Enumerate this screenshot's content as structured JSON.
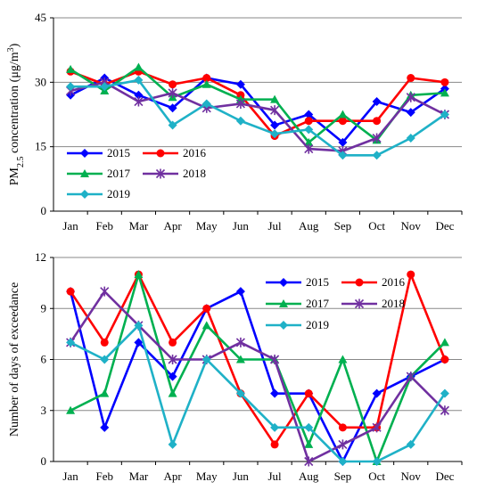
{
  "chart_data": [
    {
      "type": "line",
      "ylabel_main": "PM",
      "ylabel_sub": "2.5",
      "ylabel_rest": " concentration (μg/m",
      "ylabel_sup": "3",
      "ylabel_end": ")",
      "ylim": [
        0,
        45
      ],
      "yticks": [
        "0",
        "15",
        "30",
        "45"
      ],
      "grid": "horizontal",
      "categories": [
        "Jan",
        "Feb",
        "Mar",
        "Apr",
        "May",
        "Jun",
        "Jul",
        "Aug",
        "Sep",
        "Oct",
        "Nov",
        "Dec"
      ],
      "series": [
        {
          "name": "2015",
          "color": "#0000ff",
          "marker": "diamond",
          "values": [
            27,
            31,
            27,
            24,
            31,
            29.5,
            20,
            22.5,
            16,
            25.5,
            23,
            28.5
          ]
        },
        {
          "name": "2016",
          "color": "#ff0000",
          "marker": "circle",
          "values": [
            32.5,
            29.5,
            32.5,
            29.5,
            31,
            27,
            17.5,
            21,
            21,
            21,
            31,
            30
          ]
        },
        {
          "name": "2017",
          "color": "#00b050",
          "marker": "triangle",
          "values": [
            33,
            28,
            33.5,
            26.5,
            29.5,
            26,
            26,
            16,
            22.5,
            16.5,
            27,
            27.5
          ]
        },
        {
          "name": "2018",
          "color": "#7030a0",
          "marker": "star",
          "values": [
            28,
            30,
            25.5,
            27.5,
            24,
            25,
            23.5,
            14.5,
            14,
            17,
            26.5,
            22.5
          ]
        },
        {
          "name": "2019",
          "color": "#1fb1c7",
          "marker": "diamond",
          "values": [
            29,
            29,
            30.5,
            20,
            25,
            21,
            18,
            19,
            13,
            13,
            17,
            22.5
          ]
        }
      ]
    },
    {
      "type": "line",
      "ylabel": "Number of days of exceedance",
      "ylim": [
        0,
        12
      ],
      "yticks": [
        "0",
        "3",
        "6",
        "9",
        "12"
      ],
      "grid": "horizontal",
      "categories": [
        "Jan",
        "Feb",
        "Mar",
        "Apr",
        "May",
        "Jun",
        "Jul",
        "Aug",
        "Sep",
        "Oct",
        "Nov",
        "Dec"
      ],
      "series": [
        {
          "name": "2015",
          "color": "#0000ff",
          "marker": "diamond",
          "values": [
            10,
            2,
            7,
            5,
            9,
            10,
            4,
            4,
            0,
            4,
            5,
            6
          ]
        },
        {
          "name": "2016",
          "color": "#ff0000",
          "marker": "circle",
          "values": [
            10,
            7,
            11,
            7,
            9,
            4,
            1,
            4,
            2,
            2,
            11,
            6
          ]
        },
        {
          "name": "2017",
          "color": "#00b050",
          "marker": "triangle",
          "values": [
            3,
            4,
            11,
            4,
            8,
            6,
            6,
            1,
            6,
            0,
            5,
            7
          ]
        },
        {
          "name": "2018",
          "color": "#7030a0",
          "marker": "star",
          "values": [
            7,
            10,
            8,
            6,
            6,
            7,
            6,
            0,
            1,
            2,
            5,
            3
          ]
        },
        {
          "name": "2019",
          "color": "#1fb1c7",
          "marker": "diamond",
          "values": [
            7,
            6,
            8,
            1,
            6,
            4,
            2,
            2,
            0,
            0,
            1,
            4
          ]
        }
      ]
    }
  ]
}
